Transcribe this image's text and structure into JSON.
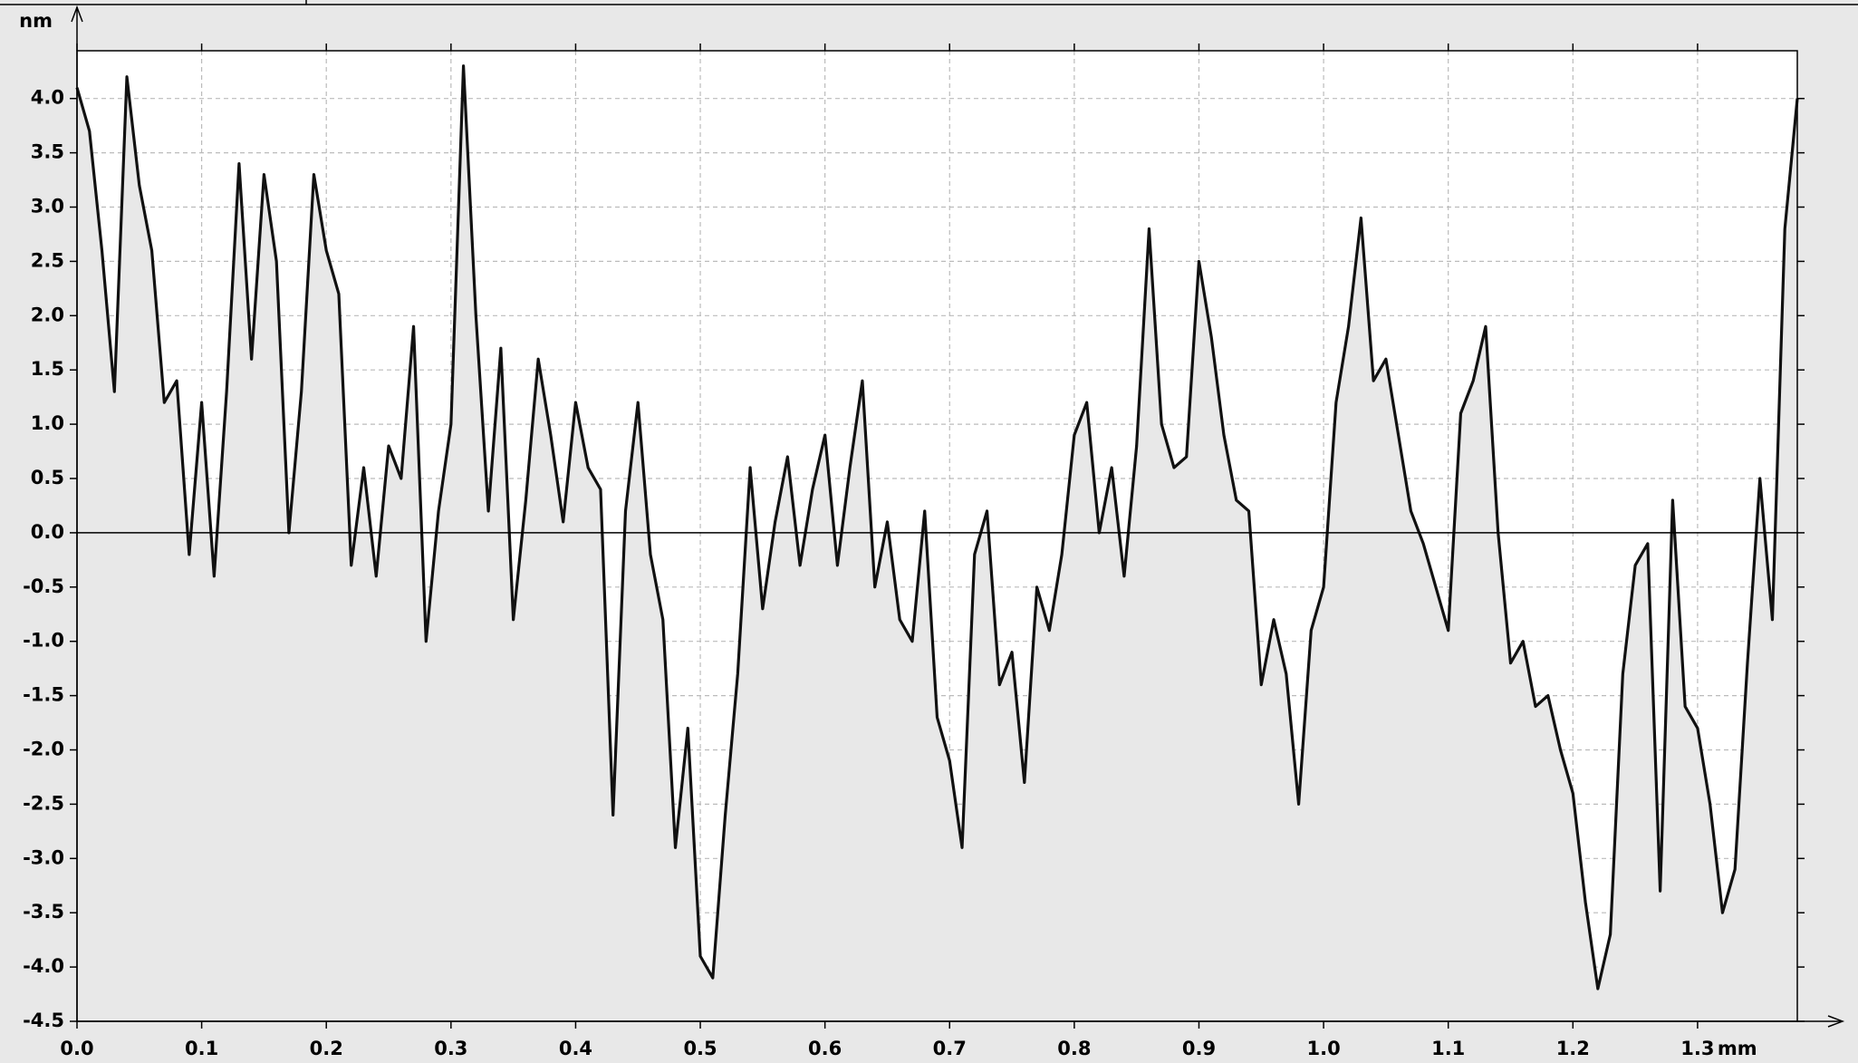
{
  "chart_data": {
    "type": "line",
    "y_unit": "nm",
    "x_unit": "mm",
    "x": [
      0.0,
      0.01,
      0.02,
      0.03,
      0.04,
      0.05,
      0.06,
      0.07,
      0.08,
      0.09,
      0.1,
      0.11,
      0.12,
      0.13,
      0.14,
      0.15,
      0.16,
      0.17,
      0.18,
      0.19,
      0.2,
      0.21,
      0.22,
      0.23,
      0.24,
      0.25,
      0.26,
      0.27,
      0.28,
      0.29,
      0.3,
      0.31,
      0.32,
      0.33,
      0.34,
      0.35,
      0.36,
      0.37,
      0.38,
      0.39,
      0.4,
      0.41,
      0.42,
      0.43,
      0.44,
      0.45,
      0.46,
      0.47,
      0.48,
      0.49,
      0.5,
      0.51,
      0.52,
      0.53,
      0.54,
      0.55,
      0.56,
      0.57,
      0.58,
      0.59,
      0.6,
      0.61,
      0.62,
      0.63,
      0.64,
      0.65,
      0.66,
      0.67,
      0.68,
      0.69,
      0.7,
      0.71,
      0.72,
      0.73,
      0.74,
      0.75,
      0.76,
      0.77,
      0.78,
      0.79,
      0.8,
      0.81,
      0.82,
      0.83,
      0.84,
      0.85,
      0.86,
      0.87,
      0.88,
      0.89,
      0.9,
      0.91,
      0.92,
      0.93,
      0.94,
      0.95,
      0.96,
      0.97,
      0.98,
      0.99,
      1.0,
      1.01,
      1.02,
      1.03,
      1.04,
      1.05,
      1.06,
      1.07,
      1.08,
      1.09,
      1.1,
      1.11,
      1.12,
      1.13,
      1.14,
      1.15,
      1.16,
      1.17,
      1.18,
      1.19,
      1.2,
      1.21,
      1.22,
      1.23,
      1.24,
      1.25,
      1.26,
      1.27,
      1.28,
      1.29,
      1.3,
      1.31,
      1.32,
      1.33,
      1.34,
      1.35,
      1.36,
      1.37,
      1.38
    ],
    "series": [
      {
        "color": "#111111",
        "values": [
          4.1,
          3.7,
          2.6,
          1.3,
          4.2,
          3.2,
          2.6,
          1.2,
          1.4,
          -0.2,
          1.2,
          -0.4,
          1.3,
          3.4,
          1.6,
          3.3,
          2.5,
          0.0,
          1.3,
          3.3,
          2.6,
          2.2,
          -0.3,
          0.6,
          -0.4,
          0.8,
          0.5,
          1.9,
          -1.0,
          0.2,
          1.0,
          4.3,
          2.0,
          0.2,
          1.7,
          -0.8,
          0.3,
          1.6,
          0.9,
          0.1,
          1.2,
          0.6,
          0.4,
          -2.6,
          0.2,
          1.2,
          -0.2,
          -0.8,
          -2.9,
          -1.8,
          -3.9,
          -4.1,
          -2.6,
          -1.3,
          0.6,
          -0.7,
          0.1,
          0.7,
          -0.3,
          0.4,
          0.9,
          -0.3,
          0.6,
          1.4,
          -0.5,
          0.1,
          -0.8,
          -1.0,
          0.2,
          -1.7,
          -2.1,
          -2.9,
          -0.2,
          0.2,
          -1.4,
          -1.1,
          -2.3,
          -0.5,
          -0.9,
          -0.2,
          0.9,
          1.2,
          0.0,
          0.6,
          -0.4,
          0.8,
          2.8,
          1.0,
          0.6,
          0.7,
          2.5,
          1.8,
          0.9,
          0.3,
          0.2,
          -1.4,
          -0.8,
          -1.3,
          -2.5,
          -0.9,
          -0.5,
          1.2,
          1.9,
          2.9,
          1.4,
          1.6,
          0.9,
          0.2,
          -0.1,
          -0.5,
          -0.9,
          1.1,
          1.4,
          1.9,
          0.0,
          -1.2,
          -1.0,
          -1.6,
          -1.5,
          -2.0,
          -2.4,
          -3.4,
          -4.2,
          -3.7,
          -1.3,
          -0.3,
          -0.1,
          -3.3,
          0.3,
          -1.6,
          -1.8,
          -2.5,
          -3.5,
          -3.1,
          -1.2,
          0.5,
          -0.8,
          2.8,
          4.0
        ]
      }
    ],
    "xlim": [
      0,
      1.38
    ],
    "ylim": [
      -4.5,
      4.44
    ],
    "xticks": [
      {
        "value": 0,
        "label": "0.0"
      },
      0.1,
      0.2,
      0.3,
      0.4,
      0.5,
      0.6,
      0.7,
      0.8,
      0.9,
      {
        "value": 1,
        "label": "1.0"
      },
      1.1,
      1.2,
      1.3
    ],
    "yticks": [
      -4.5,
      {
        "value": -4,
        "label": "-4.0"
      },
      -3.5,
      {
        "value": -3,
        "label": "-3.0"
      },
      -2.5,
      {
        "value": -2,
        "label": "-2.0"
      },
      -1.5,
      {
        "value": -1,
        "label": "-1.0"
      },
      -0.5,
      {
        "value": 0,
        "label": "0.0"
      },
      0.5,
      {
        "value": 1,
        "label": "1.0"
      },
      1.5,
      {
        "value": 2,
        "label": "2.0"
      },
      2.5,
      {
        "value": 3,
        "label": "3.0"
      },
      3.5,
      {
        "value": 4,
        "label": "4.0"
      }
    ],
    "grid": true
  }
}
